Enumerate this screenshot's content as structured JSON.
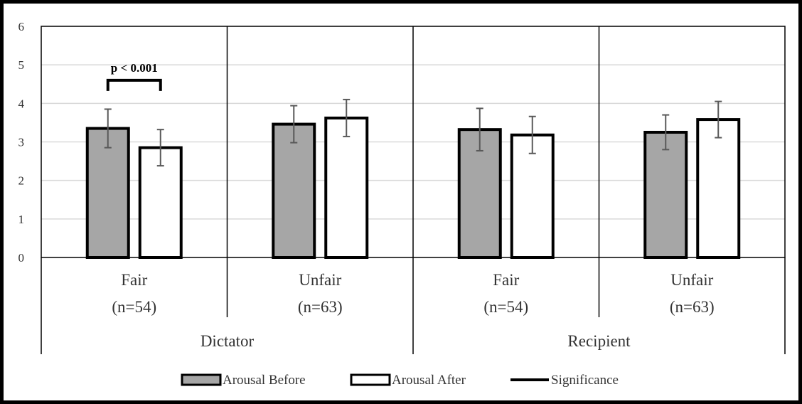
{
  "chart_data": {
    "type": "bar",
    "ylim": [
      0,
      6
    ],
    "y_ticks": [
      0,
      1,
      2,
      3,
      4,
      5,
      6
    ],
    "grid": true,
    "legend_position": "bottom",
    "groups": [
      {
        "name": "Dictator",
        "categories": [
          {
            "label": [
              "Fair",
              "(n=54)"
            ],
            "before": 3.35,
            "before_err": 0.5,
            "after": 2.85,
            "after_err": 0.47
          },
          {
            "label": [
              "Unfair",
              "(n=63)"
            ],
            "before": 3.46,
            "before_err": 0.48,
            "after": 3.62,
            "after_err": 0.48
          }
        ]
      },
      {
        "name": "Recipient",
        "categories": [
          {
            "label": [
              "Fair",
              "(n=54)"
            ],
            "before": 3.32,
            "before_err": 0.55,
            "after": 3.18,
            "after_err": 0.48
          },
          {
            "label": [
              "Unfair",
              "(n=63)"
            ],
            "before": 3.25,
            "before_err": 0.45,
            "after": 3.58,
            "after_err": 0.47
          }
        ]
      }
    ],
    "series": [
      {
        "name": "Arousal Before",
        "color": "#a6a6a6"
      },
      {
        "name": "Arousal After",
        "color": "#ffffff"
      },
      {
        "name": "Significance",
        "color": "#000000"
      }
    ],
    "annotation": {
      "text": "p < 0.001",
      "group": 0,
      "category": 0,
      "y": 4.6
    }
  }
}
